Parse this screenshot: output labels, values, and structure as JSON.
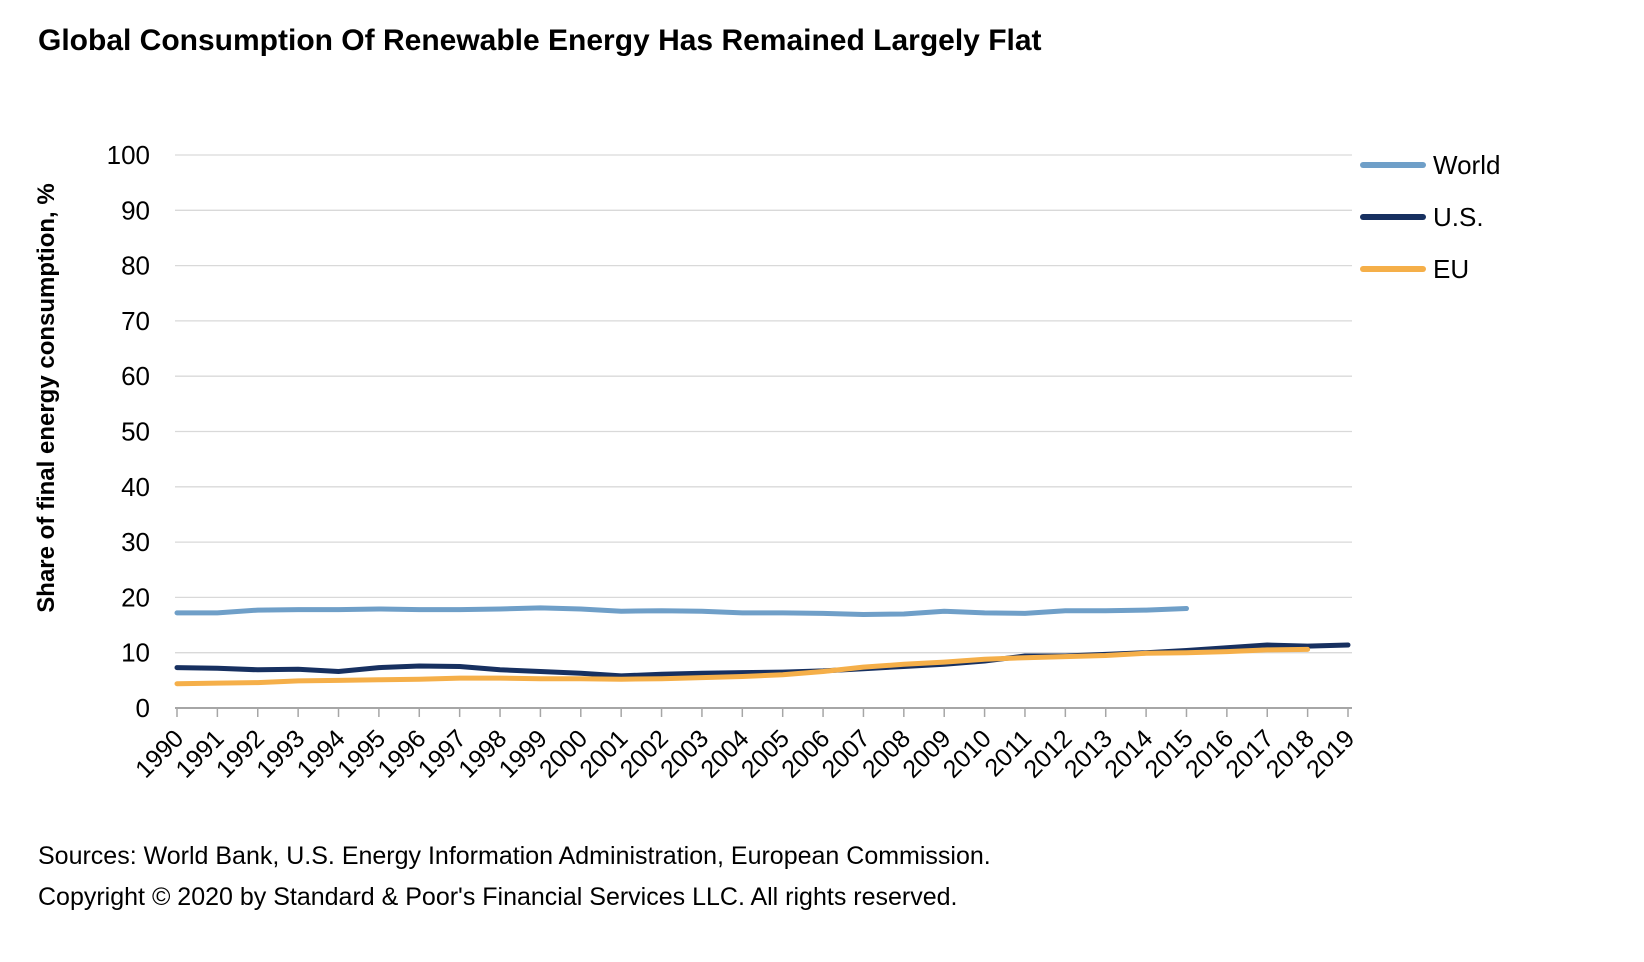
{
  "title": "Global Consumption Of Renewable Energy Has Remained Largely Flat",
  "footer": {
    "sources": "Sources: World Bank, U.S. Energy Information Administration, European Commission.",
    "copyright": "Copyright © 2020 by Standard & Poor's Financial Services LLC. All rights reserved."
  },
  "colors": {
    "world": "#6f9fc8",
    "us": "#173060",
    "eu": "#f5af49",
    "gridline": "#d9d9d9",
    "axis": "#a6a6a6",
    "text": "#000000"
  },
  "chart_data": {
    "type": "line",
    "title": "Global Consumption Of Renewable Energy Has Remained Largely Flat",
    "xlabel": "",
    "ylabel": "Share of final energy consumption, %",
    "ylim": [
      0,
      100
    ],
    "ytick_step": 10,
    "grid": true,
    "legend_position": "right",
    "x": [
      1990,
      1991,
      1992,
      1993,
      1994,
      1995,
      1996,
      1997,
      1998,
      1999,
      2000,
      2001,
      2002,
      2003,
      2004,
      2005,
      2006,
      2007,
      2008,
      2009,
      2010,
      2011,
      2012,
      2013,
      2014,
      2015,
      2016,
      2017,
      2018,
      2019
    ],
    "series": [
      {
        "name": "World",
        "color": "#6f9fc8",
        "x_start": 1990,
        "values": [
          17.2,
          17.2,
          17.7,
          17.8,
          17.8,
          17.9,
          17.8,
          17.8,
          17.9,
          18.1,
          17.9,
          17.5,
          17.6,
          17.5,
          17.2,
          17.2,
          17.1,
          16.9,
          17.0,
          17.5,
          17.2,
          17.1,
          17.6,
          17.6,
          17.7,
          18.0
        ]
      },
      {
        "name": "U.S.",
        "color": "#173060",
        "x_start": 1990,
        "values": [
          7.3,
          7.2,
          6.9,
          7.0,
          6.6,
          7.3,
          7.6,
          7.5,
          6.9,
          6.6,
          6.3,
          5.8,
          6.1,
          6.3,
          6.4,
          6.5,
          6.7,
          7.1,
          7.5,
          7.9,
          8.5,
          9.4,
          9.4,
          9.7,
          10.0,
          10.4,
          10.9,
          11.4,
          11.2,
          11.4
        ]
      },
      {
        "name": "EU",
        "color": "#f5af49",
        "x_start": 1990,
        "values": [
          4.4,
          4.5,
          4.6,
          4.9,
          5.0,
          5.1,
          5.2,
          5.4,
          5.4,
          5.3,
          5.3,
          5.2,
          5.3,
          5.5,
          5.7,
          6.0,
          6.6,
          7.4,
          7.9,
          8.3,
          8.8,
          9.1,
          9.3,
          9.5,
          9.9,
          10.0,
          10.2,
          10.5,
          10.6
        ]
      }
    ]
  }
}
